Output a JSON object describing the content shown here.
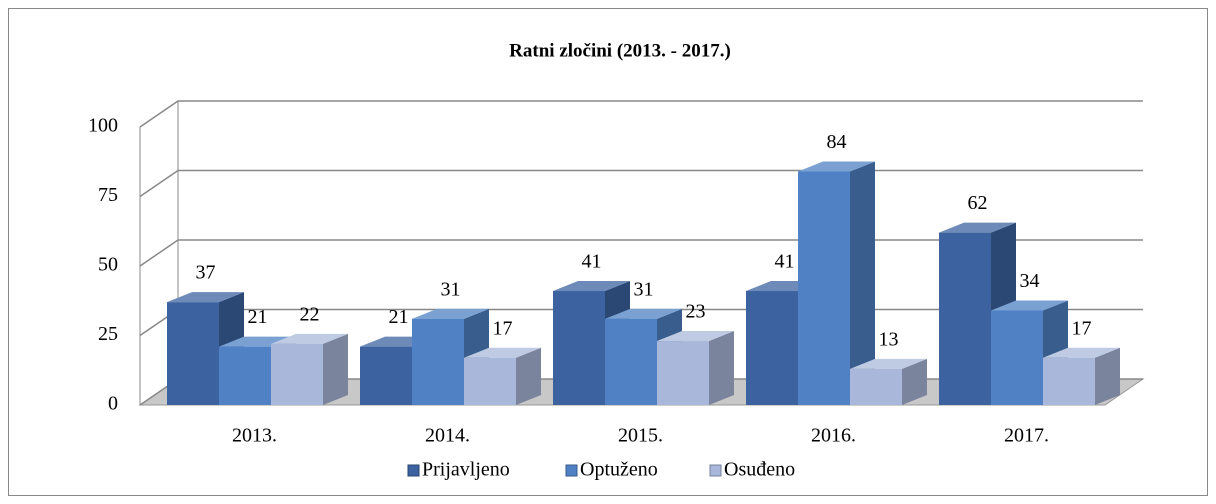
{
  "chart_data": {
    "type": "bar3d",
    "title": "Ratni zločini (2013. - 2017.)",
    "categories": [
      "2013.",
      "2014.",
      "2015.",
      "2016.",
      "2017."
    ],
    "series": [
      {
        "name": "Prijavljeno",
        "color": "#3c63a0",
        "values": [
          37,
          21,
          41,
          41,
          62
        ]
      },
      {
        "name": "Optuženo",
        "color": "#4f81c4",
        "values": [
          21,
          31,
          31,
          84,
          34
        ]
      },
      {
        "name": "Osuđeno",
        "color": "#a9b8da",
        "values": [
          22,
          17,
          23,
          13,
          17
        ]
      }
    ],
    "ylim": [
      0,
      100
    ],
    "yticks": [
      0,
      25,
      50,
      75,
      100
    ],
    "grid": true,
    "legend": "bottom"
  }
}
